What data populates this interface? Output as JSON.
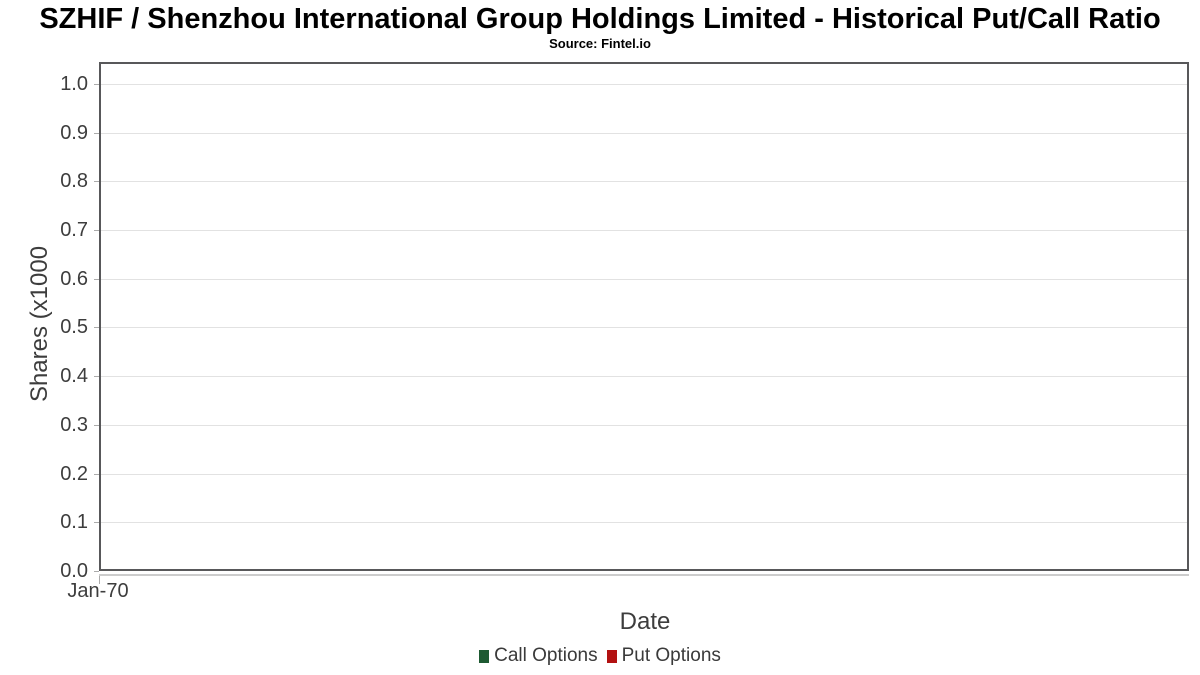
{
  "header": {
    "title": "SZHIF / Shenzhou International Group Holdings Limited - Historical Put/Call Ratio",
    "subtitle": "Source: Fintel.io"
  },
  "chart_data": {
    "type": "line",
    "title": "SZHIF / Shenzhou International Group Holdings Limited - Historical Put/Call Ratio",
    "subtitle": "Source: Fintel.io",
    "xlabel": "Date",
    "ylabel": "Shares (x1000",
    "xticklabels": [
      "Jan-70"
    ],
    "yticks": [
      0.0,
      0.1,
      0.2,
      0.3,
      0.4,
      0.5,
      0.6,
      0.7,
      0.8,
      0.9,
      1.0
    ],
    "ylim": [
      0,
      1.045
    ],
    "grid": true,
    "legend_position": "bottom",
    "series": [
      {
        "name": "Call Options",
        "color": "#1e5a32",
        "values": []
      },
      {
        "name": "Put Options",
        "color": "#b21111",
        "values": []
      }
    ]
  }
}
